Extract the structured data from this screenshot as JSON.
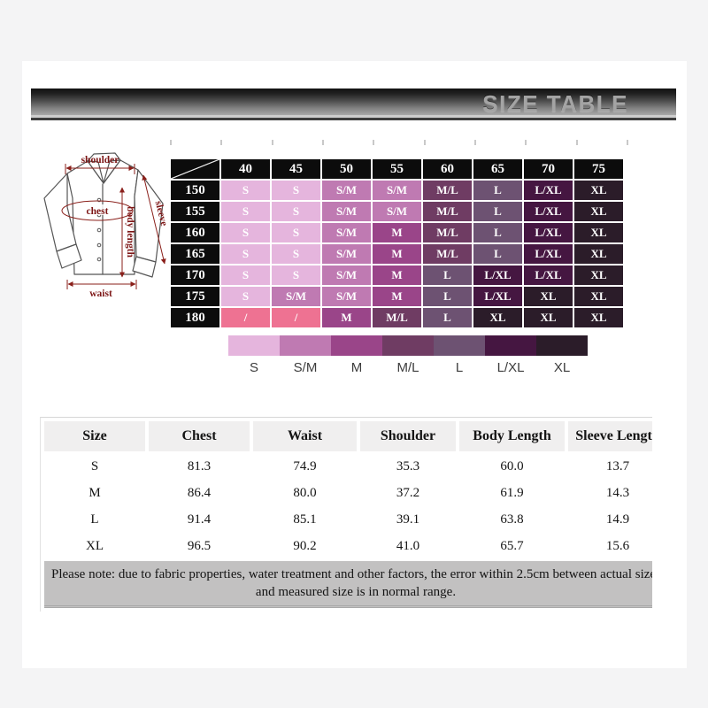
{
  "banner": {
    "title": "SIZE TABLE"
  },
  "diagram": {
    "shoulder": "shoulder",
    "chest": "chest",
    "sleeve": "sleeve",
    "body_length": "body length",
    "waist": "waist"
  },
  "size_matrix": {
    "col_headers": [
      "40",
      "45",
      "50",
      "55",
      "60",
      "65",
      "70",
      "75"
    ],
    "row_headers": [
      "150",
      "155",
      "160",
      "165",
      "170",
      "175",
      "180"
    ],
    "rows": [
      [
        "S",
        "S",
        "S/M",
        "S/M",
        "M/L",
        "L",
        "L/XL",
        "XL"
      ],
      [
        "S",
        "S",
        "S/M",
        "S/M",
        "M/L",
        "L",
        "L/XL",
        "XL"
      ],
      [
        "S",
        "S",
        "S/M",
        "M",
        "M/L",
        "L",
        "L/XL",
        "XL"
      ],
      [
        "S",
        "S",
        "S/M",
        "M",
        "M/L",
        "L",
        "L/XL",
        "XL"
      ],
      [
        "S",
        "S",
        "S/M",
        "M",
        "L",
        "L/XL",
        "L/XL",
        "XL"
      ],
      [
        "S",
        "S/M",
        "S/M",
        "M",
        "L",
        "L/XL",
        "XL",
        "XL"
      ],
      [
        "/",
        "/",
        "M",
        "M/L",
        "L",
        "XL",
        "XL",
        "XL"
      ]
    ],
    "cell_colors": {
      "S": "#e5b5dd",
      "S/M": "#bf7ab2",
      "M": "#9a4589",
      "M/L": "#6f3c63",
      "L": "#6d5272",
      "L/XL": "#451641",
      "XL": "#2b1c29",
      "/": "#ee7292"
    },
    "legend_labels": [
      "S",
      "S/M",
      "M",
      "M/L",
      "L",
      "L/XL",
      "XL"
    ]
  },
  "measurements": {
    "headers": [
      "Size",
      "Chest",
      "Waist",
      "Shoulder",
      "Body Length",
      "Sleeve Length"
    ],
    "rows": [
      [
        "S",
        "81.3",
        "74.9",
        "35.3",
        "60.0",
        "13.7"
      ],
      [
        "M",
        "86.4",
        "80.0",
        "37.2",
        "61.9",
        "14.3"
      ],
      [
        "L",
        "91.4",
        "85.1",
        "39.1",
        "63.8",
        "14.9"
      ],
      [
        "XL",
        "96.5",
        "90.2",
        "41.0",
        "65.7",
        "15.6"
      ]
    ],
    "note_lines": [
      "Please note: due to fabric properties, water treatment and other factors, the error within 2.5cm between actual size",
      "and measured size is in normal range."
    ]
  }
}
